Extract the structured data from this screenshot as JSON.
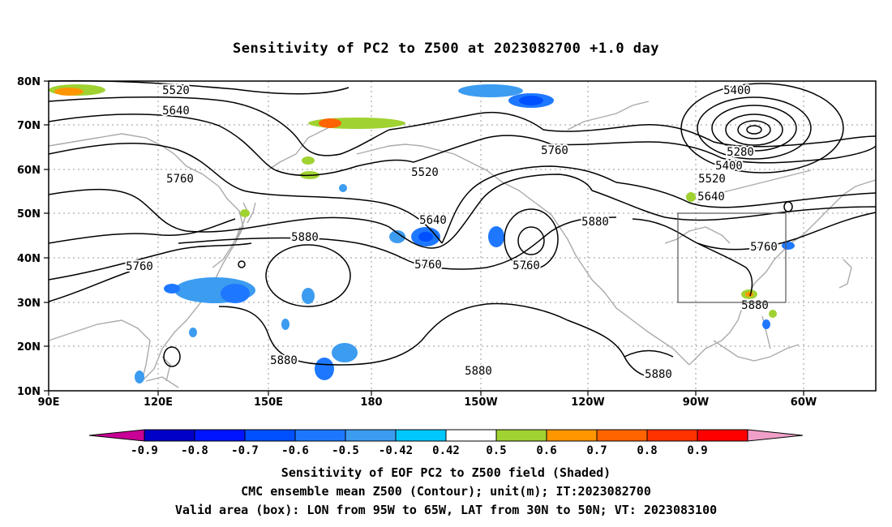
{
  "title": "Sensitivity of PC2 to Z500 at 2023082700 +1.0 day",
  "lat_labels": [
    "80N",
    "70N",
    "60N",
    "50N",
    "40N",
    "30N",
    "20N",
    "10N"
  ],
  "lon_labels": [
    "90E",
    "120E",
    "150E",
    "180",
    "150W",
    "120W",
    "90W",
    "60W"
  ],
  "contour_labels": [
    {
      "text": "5520"
    },
    {
      "text": "5640"
    },
    {
      "text": "5760"
    },
    {
      "text": "5760"
    },
    {
      "text": "5880"
    },
    {
      "text": "5640"
    },
    {
      "text": "5760"
    },
    {
      "text": "5520"
    },
    {
      "text": "5760"
    },
    {
      "text": "5880"
    },
    {
      "text": "5400"
    },
    {
      "text": "5280"
    },
    {
      "text": "5400"
    },
    {
      "text": "5520"
    },
    {
      "text": "5640"
    },
    {
      "text": "5760"
    },
    {
      "text": "5880"
    },
    {
      "text": "5880"
    },
    {
      "text": "5880"
    },
    {
      "text": "5880"
    },
    {
      "text": "5760"
    }
  ],
  "colorbar": {
    "colors": [
      "#c80096",
      "#0000c8",
      "#0014ff",
      "#0050ff",
      "#1e78ff",
      "#3c9cf0",
      "#00c8ff",
      "#ffffff",
      "#a0d232",
      "#ff9600",
      "#ff6400",
      "#ff3200",
      "#ff0000",
      "#f0a0c8"
    ],
    "labels": [
      "-0.9",
      "-0.8",
      "-0.7",
      "-0.6",
      "-0.5",
      "-0.42",
      "0.42",
      "0.5",
      "0.6",
      "0.7",
      "0.8",
      "0.9"
    ]
  },
  "captions": [
    "Sensitivity of EOF PC2 to Z500 field (Shaded)",
    "CMC ensemble mean Z500 (Contour); unit(m); IT:2023082700",
    "Valid area (box): LON from 95W to 65W, LAT from 30N to 50N; VT: 2023083100"
  ]
}
